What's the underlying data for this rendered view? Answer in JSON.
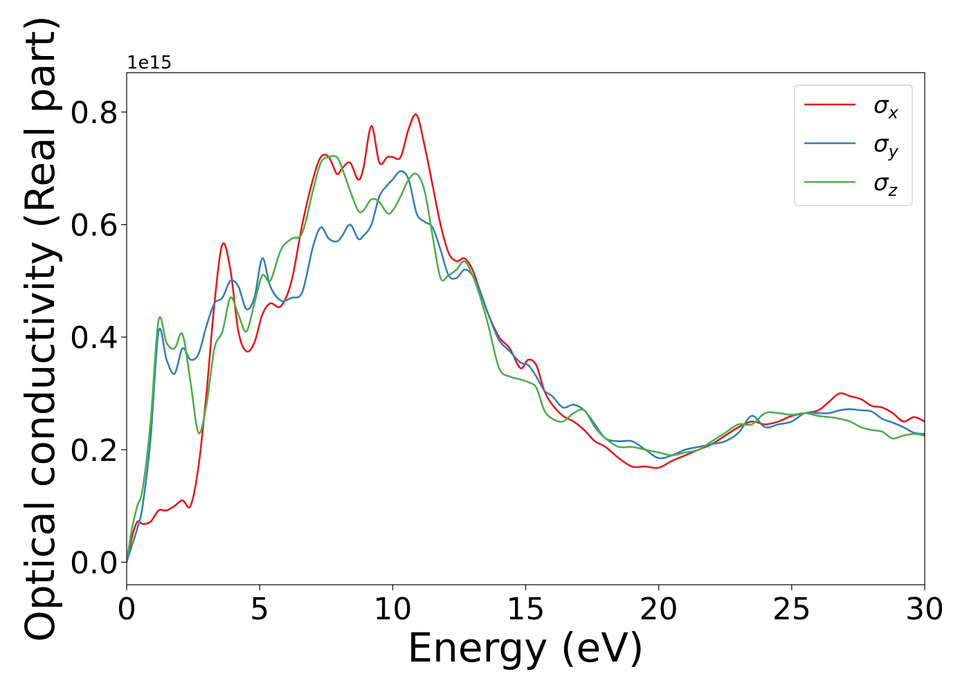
{
  "chart_data": {
    "type": "line",
    "title": "",
    "xlabel": "Energy (eV)",
    "ylabel": "Optical conductivity (Real part)",
    "y_offset_label": "1e15",
    "xlim": [
      0,
      30
    ],
    "ylim": [
      -0.04,
      0.87
    ],
    "x_ticks": [
      0,
      5,
      10,
      15,
      20,
      25,
      30
    ],
    "y_ticks": [
      0.0,
      0.2,
      0.4,
      0.6,
      0.8
    ],
    "x_tick_labels": [
      "0",
      "5",
      "10",
      "15",
      "20",
      "25",
      "30"
    ],
    "y_tick_labels": [
      "0.0",
      "0.2",
      "0.4",
      "0.6",
      "0.8"
    ],
    "grid": false,
    "legend_position": "top-right",
    "series": [
      {
        "name": "σx",
        "legend_base": "σ",
        "legend_sub": "x",
        "color": "#e41a1c",
        "x": [
          0,
          0.2,
          0.4,
          0.6,
          0.9,
          1.2,
          1.5,
          1.8,
          2.1,
          2.4,
          2.7,
          3.0,
          3.3,
          3.6,
          3.9,
          4.2,
          4.5,
          4.8,
          5.1,
          5.4,
          5.8,
          6.2,
          6.6,
          7.0,
          7.3,
          7.6,
          7.9,
          8.1,
          8.4,
          8.7,
          8.9,
          9.2,
          9.5,
          9.8,
          10.0,
          10.3,
          10.6,
          10.9,
          11.2,
          11.5,
          11.8,
          12.1,
          12.4,
          12.7,
          13.0,
          13.3,
          13.6,
          14.0,
          14.4,
          14.8,
          15.1,
          15.4,
          15.7,
          16.0,
          16.4,
          16.8,
          17.2,
          17.6,
          18.0,
          18.5,
          19.0,
          19.5,
          20.0,
          20.5,
          21.0,
          21.5,
          22.0,
          22.5,
          23.0,
          23.5,
          24.0,
          24.5,
          25.0,
          25.5,
          26.0,
          26.4,
          26.8,
          27.2,
          27.6,
          28.0,
          28.4,
          28.8,
          29.2,
          29.6,
          30.0
        ],
        "y": [
          0.0,
          0.045,
          0.072,
          0.068,
          0.072,
          0.092,
          0.092,
          0.1,
          0.11,
          0.1,
          0.17,
          0.3,
          0.46,
          0.565,
          0.52,
          0.41,
          0.375,
          0.39,
          0.44,
          0.46,
          0.455,
          0.5,
          0.6,
          0.68,
          0.72,
          0.72,
          0.69,
          0.7,
          0.71,
          0.68,
          0.7,
          0.775,
          0.71,
          0.72,
          0.72,
          0.72,
          0.77,
          0.795,
          0.74,
          0.67,
          0.6,
          0.55,
          0.535,
          0.54,
          0.52,
          0.48,
          0.44,
          0.4,
          0.38,
          0.345,
          0.36,
          0.35,
          0.305,
          0.28,
          0.26,
          0.25,
          0.235,
          0.215,
          0.205,
          0.185,
          0.17,
          0.17,
          0.168,
          0.18,
          0.19,
          0.2,
          0.21,
          0.225,
          0.24,
          0.25,
          0.245,
          0.25,
          0.26,
          0.265,
          0.27,
          0.285,
          0.3,
          0.295,
          0.29,
          0.278,
          0.275,
          0.265,
          0.25,
          0.258,
          0.25
        ]
      },
      {
        "name": "σy",
        "legend_base": "σ",
        "legend_sub": "y",
        "color": "#377eb8",
        "x": [
          0,
          0.2,
          0.4,
          0.6,
          0.9,
          1.2,
          1.5,
          1.8,
          2.1,
          2.4,
          2.7,
          3.0,
          3.3,
          3.6,
          3.9,
          4.2,
          4.5,
          4.8,
          5.1,
          5.4,
          5.8,
          6.2,
          6.6,
          7.0,
          7.3,
          7.6,
          7.9,
          8.1,
          8.4,
          8.7,
          8.9,
          9.2,
          9.5,
          9.8,
          10.0,
          10.3,
          10.6,
          10.9,
          11.2,
          11.5,
          11.8,
          12.1,
          12.4,
          12.7,
          13.0,
          13.3,
          13.6,
          14.0,
          14.4,
          14.8,
          15.1,
          15.4,
          15.7,
          16.0,
          16.4,
          16.8,
          17.2,
          17.6,
          18.0,
          18.5,
          19.0,
          19.5,
          20.0,
          20.5,
          21.0,
          21.5,
          22.0,
          22.5,
          23.0,
          23.5,
          24.0,
          24.5,
          25.0,
          25.5,
          26.0,
          26.4,
          26.8,
          27.2,
          27.6,
          28.0,
          28.4,
          28.8,
          29.2,
          29.6,
          30.0
        ],
        "y": [
          0.0,
          0.03,
          0.06,
          0.1,
          0.22,
          0.41,
          0.36,
          0.335,
          0.38,
          0.36,
          0.37,
          0.42,
          0.46,
          0.47,
          0.5,
          0.49,
          0.45,
          0.47,
          0.54,
          0.49,
          0.465,
          0.47,
          0.48,
          0.56,
          0.595,
          0.575,
          0.57,
          0.58,
          0.6,
          0.575,
          0.58,
          0.6,
          0.65,
          0.67,
          0.68,
          0.695,
          0.68,
          0.62,
          0.605,
          0.595,
          0.555,
          0.51,
          0.505,
          0.52,
          0.51,
          0.48,
          0.44,
          0.395,
          0.375,
          0.355,
          0.35,
          0.33,
          0.305,
          0.295,
          0.275,
          0.28,
          0.27,
          0.245,
          0.22,
          0.215,
          0.215,
          0.2,
          0.185,
          0.19,
          0.2,
          0.205,
          0.21,
          0.215,
          0.23,
          0.26,
          0.24,
          0.245,
          0.25,
          0.265,
          0.265,
          0.265,
          0.27,
          0.272,
          0.27,
          0.268,
          0.255,
          0.248,
          0.24,
          0.23,
          0.228
        ]
      },
      {
        "name": "σz",
        "legend_base": "σ",
        "legend_sub": "z",
        "color": "#4daf4a",
        "x": [
          0,
          0.2,
          0.4,
          0.6,
          0.9,
          1.2,
          1.5,
          1.8,
          2.1,
          2.4,
          2.7,
          3.0,
          3.3,
          3.6,
          3.9,
          4.2,
          4.5,
          4.8,
          5.1,
          5.4,
          5.8,
          6.2,
          6.6,
          7.0,
          7.3,
          7.6,
          7.9,
          8.1,
          8.4,
          8.7,
          8.9,
          9.2,
          9.5,
          9.8,
          10.0,
          10.3,
          10.6,
          10.9,
          11.2,
          11.5,
          11.8,
          12.1,
          12.4,
          12.7,
          13.0,
          13.3,
          13.6,
          14.0,
          14.4,
          14.8,
          15.1,
          15.4,
          15.7,
          16.0,
          16.4,
          16.8,
          17.2,
          17.6,
          18.0,
          18.5,
          19.0,
          19.5,
          20.0,
          20.5,
          21.0,
          21.5,
          22.0,
          22.5,
          23.0,
          23.5,
          24.0,
          24.5,
          25.0,
          25.5,
          26.0,
          26.4,
          26.8,
          27.2,
          27.6,
          28.0,
          28.4,
          28.8,
          29.2,
          29.6,
          30.0
        ],
        "y": [
          0.0,
          0.06,
          0.1,
          0.13,
          0.25,
          0.43,
          0.39,
          0.38,
          0.405,
          0.32,
          0.23,
          0.28,
          0.38,
          0.41,
          0.47,
          0.44,
          0.41,
          0.46,
          0.51,
          0.5,
          0.555,
          0.575,
          0.585,
          0.66,
          0.71,
          0.72,
          0.72,
          0.7,
          0.66,
          0.625,
          0.625,
          0.645,
          0.64,
          0.62,
          0.625,
          0.65,
          0.68,
          0.69,
          0.66,
          0.58,
          0.505,
          0.51,
          0.52,
          0.535,
          0.51,
          0.47,
          0.42,
          0.345,
          0.33,
          0.325,
          0.32,
          0.31,
          0.27,
          0.255,
          0.25,
          0.265,
          0.27,
          0.24,
          0.22,
          0.205,
          0.205,
          0.2,
          0.195,
          0.19,
          0.195,
          0.2,
          0.215,
          0.23,
          0.245,
          0.245,
          0.265,
          0.265,
          0.262,
          0.265,
          0.26,
          0.258,
          0.255,
          0.25,
          0.24,
          0.235,
          0.232,
          0.22,
          0.225,
          0.228,
          0.225
        ]
      }
    ]
  }
}
